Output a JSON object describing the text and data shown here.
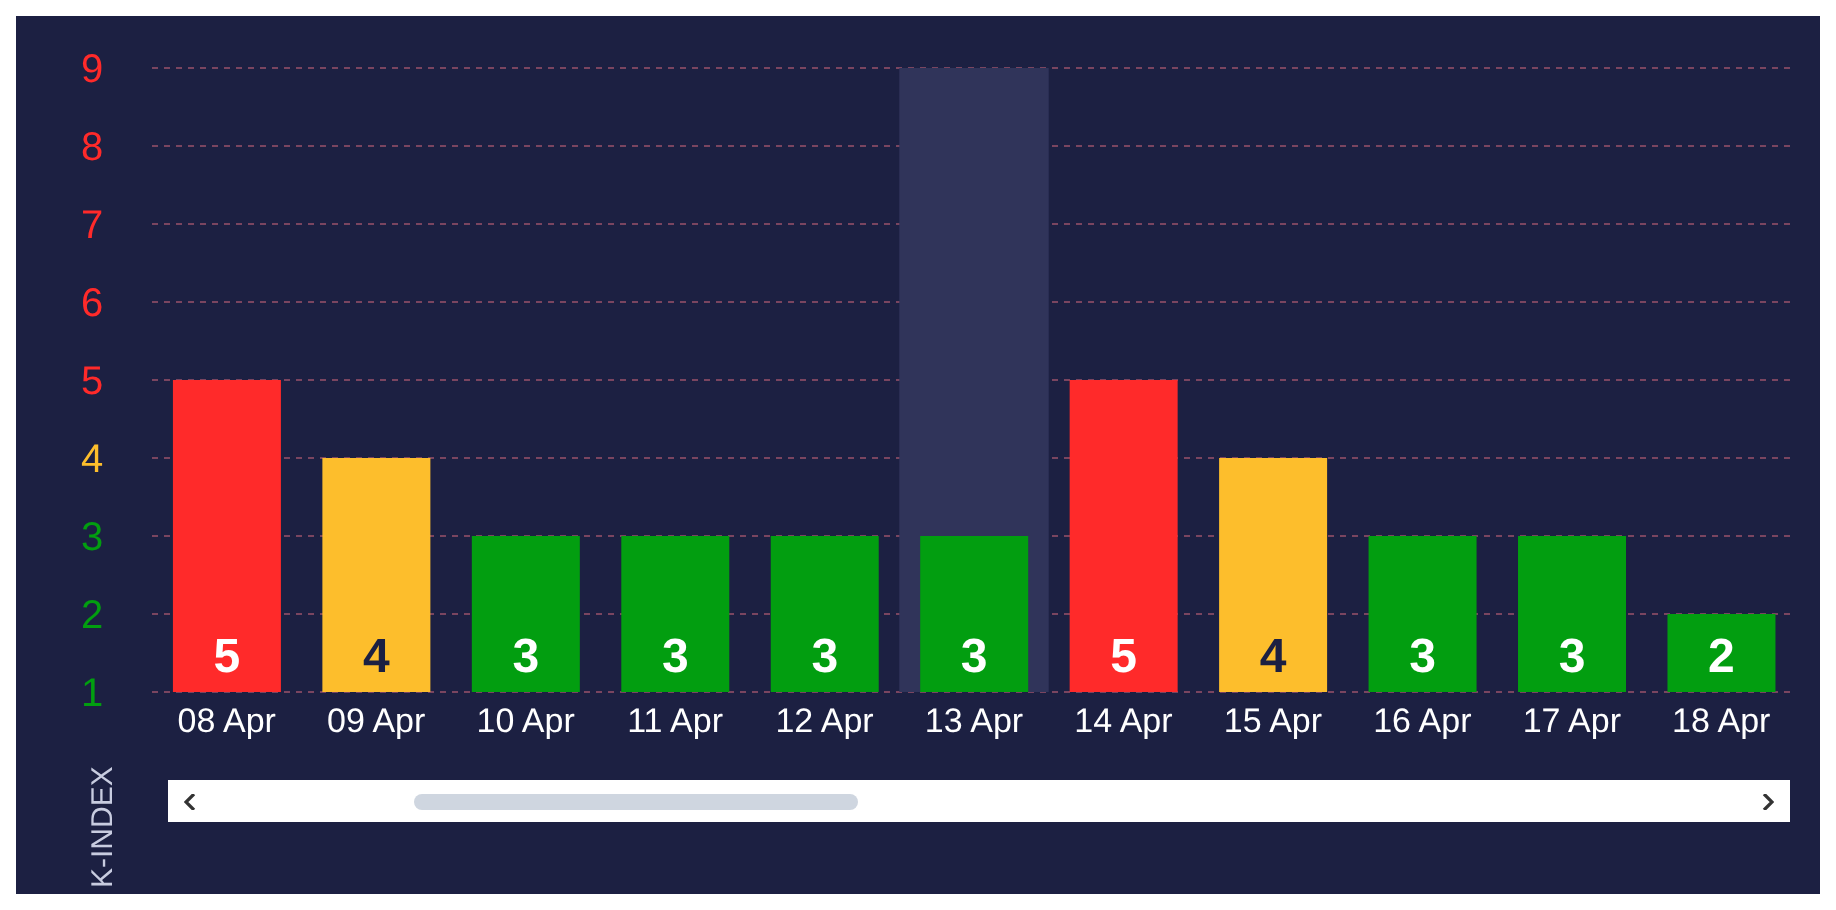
{
  "chart_data": {
    "type": "bar",
    "ylabel": "K-INDEX",
    "categories": [
      "08 Apr",
      "09 Apr",
      "10 Apr",
      "11 Apr",
      "12 Apr",
      "13 Apr",
      "14 Apr",
      "15 Apr",
      "16 Apr",
      "17 Apr",
      "18 Apr"
    ],
    "values": [
      5,
      4,
      3,
      3,
      3,
      3,
      5,
      4,
      3,
      3,
      2
    ],
    "colors": [
      "#ff2a2a",
      "#fdbe2c",
      "#029e10",
      "#029e10",
      "#029e10",
      "#029e10",
      "#ff2a2a",
      "#fdbe2c",
      "#029e10",
      "#029e10",
      "#029e10"
    ],
    "ylim": [
      1,
      9
    ],
    "yticks": [
      1,
      2,
      3,
      4,
      5,
      6,
      7,
      8,
      9
    ],
    "grid": "y",
    "data_labels": true,
    "bands": [
      {
        "axis": "x",
        "from": "13 Apr",
        "to": "13 Apr",
        "color": "#30345a"
      }
    ]
  }
}
